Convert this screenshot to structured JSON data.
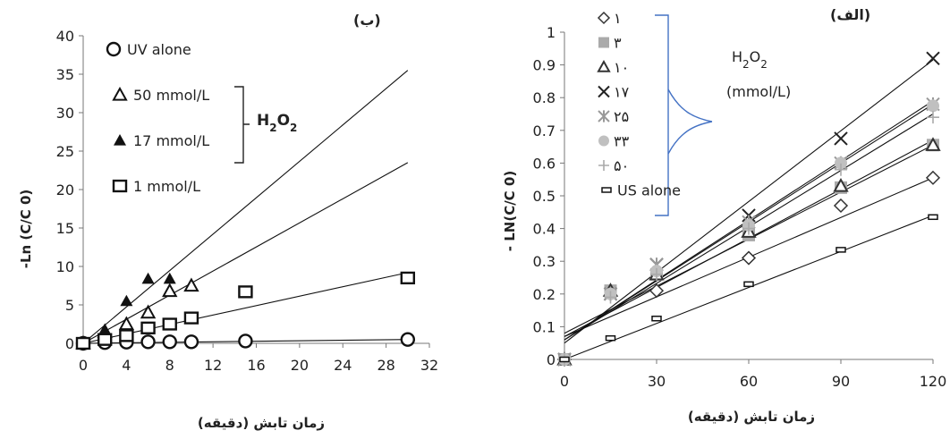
{
  "chart_data": [
    {
      "type": "scatter",
      "panel_label": "(ب)",
      "xlabel": "زمان تابش (دقیقه)",
      "ylabel": "-Ln (C/C 0)",
      "xlim": [
        0,
        32
      ],
      "ylim": [
        0,
        40
      ],
      "xticks": [
        "0",
        "4",
        "8",
        "12",
        "16",
        "20",
        "24",
        "28",
        "32"
      ],
      "yticks": [
        "0",
        "5",
        "10",
        "15",
        "20",
        "25",
        "30",
        "35",
        "40"
      ],
      "legend_group_label": "H2O2",
      "series": [
        {
          "name": "UV alone",
          "marker": "circle",
          "x": [
            0,
            2,
            4,
            6,
            8,
            10,
            15,
            30
          ],
          "y": [
            0,
            0.1,
            0.15,
            0.2,
            0.2,
            0.2,
            0.3,
            0.5
          ],
          "trend": [
            [
              0,
              0
            ],
            [
              30,
              0.5
            ]
          ]
        },
        {
          "name": "50 mmol/L",
          "marker": "triangle-open",
          "x": [
            0,
            2,
            4,
            6,
            8,
            10
          ],
          "y": [
            0,
            1.5,
            2.5,
            4,
            6.8,
            7.5
          ],
          "trend": [
            [
              0,
              0
            ],
            [
              30,
              23.5
            ]
          ]
        },
        {
          "name": "17 mmol/L",
          "marker": "triangle-filled",
          "x": [
            0,
            2,
            4,
            6,
            8
          ],
          "y": [
            0,
            1.8,
            5.5,
            8.4,
            8.4
          ],
          "trend": [
            [
              0,
              0
            ],
            [
              30,
              35.5
            ]
          ]
        },
        {
          "name": "1 mmol/L",
          "marker": "square-open",
          "x": [
            0,
            2,
            4,
            6,
            8,
            10,
            15,
            30
          ],
          "y": [
            0,
            0.5,
            1,
            2,
            2.5,
            3.3,
            6.7,
            8.5
          ],
          "trend": [
            [
              0,
              0
            ],
            [
              30,
              9.2
            ]
          ]
        }
      ]
    },
    {
      "type": "scatter",
      "panel_label": "(الف)",
      "xlabel": "زمان تابش (دقیقه)",
      "ylabel": "- LN(C/C 0)",
      "xlim": [
        0,
        120
      ],
      "ylim": [
        0,
        1
      ],
      "xticks": [
        "0",
        "30",
        "60",
        "90",
        "120"
      ],
      "yticks": [
        "0",
        "0.1",
        "0.2",
        "0.3",
        "0.4",
        "0.5",
        "0.6",
        "0.7",
        "0.8",
        "0.9",
        "1"
      ],
      "legend_group_label": "H2O2",
      "legend_group_unit": "(mmol/L)",
      "series": [
        {
          "name": "۱",
          "marker": "diamond-open",
          "color": "#333333",
          "x": [
            0,
            30,
            60,
            90,
            120
          ],
          "y": [
            0,
            0.21,
            0.31,
            0.47,
            0.555
          ],
          "trend": [
            [
              0,
              0.07
            ],
            [
              120,
              0.555
            ]
          ]
        },
        {
          "name": "۳",
          "marker": "square-filled",
          "color": "#aaaaaa",
          "x": [
            0,
            15,
            30,
            60,
            90,
            120
          ],
          "y": [
            0,
            0.21,
            0.26,
            0.38,
            0.525,
            0.655
          ],
          "trend": [
            [
              0,
              0.08
            ],
            [
              120,
              0.655
            ]
          ]
        },
        {
          "name": "۱۰",
          "marker": "triangle-open",
          "color": "#333333",
          "x": [
            0,
            15,
            30,
            60,
            90,
            120
          ],
          "y": [
            0,
            0.21,
            0.26,
            0.39,
            0.53,
            0.655
          ],
          "trend": [
            [
              0,
              0.07
            ],
            [
              120,
              0.67
            ]
          ]
        },
        {
          "name": "۱۷",
          "marker": "x",
          "color": "#222222",
          "x": [
            0,
            15,
            30,
            60,
            90,
            120
          ],
          "y": [
            0,
            0.2,
            0.29,
            0.44,
            0.675,
            0.92
          ],
          "trend": [
            [
              0,
              0.05
            ],
            [
              120,
              0.915
            ]
          ]
        },
        {
          "name": "۲۵",
          "marker": "asterisk",
          "color": "#999999",
          "x": [
            0,
            15,
            30,
            60,
            90,
            120
          ],
          "y": [
            0,
            0.2,
            0.29,
            0.42,
            0.6,
            0.78
          ],
          "trend": [
            [
              0,
              0.06
            ],
            [
              120,
              0.79
            ]
          ]
        },
        {
          "name": "۳۳",
          "marker": "circle-filled",
          "color": "#c0c0c0",
          "x": [
            0,
            15,
            30,
            60,
            90,
            120
          ],
          "y": [
            0,
            0.2,
            0.27,
            0.41,
            0.6,
            0.775
          ],
          "trend": [
            [
              0,
              0.06
            ],
            [
              120,
              0.78
            ]
          ]
        },
        {
          "name": "۵۰",
          "marker": "plus",
          "color": "#aaaaaa",
          "x": [
            0,
            15,
            30,
            60,
            90,
            120
          ],
          "y": [
            0,
            0.19,
            0.26,
            0.4,
            0.58,
            0.74
          ],
          "trend": [
            [
              0,
              0.06
            ],
            [
              120,
              0.75
            ]
          ]
        },
        {
          "name": "US alone",
          "marker": "dash",
          "color": "#222222",
          "x": [
            0,
            15,
            30,
            60,
            90,
            120
          ],
          "y": [
            0,
            0.065,
            0.125,
            0.23,
            0.335,
            0.435
          ],
          "trend": [
            [
              0,
              0
            ],
            [
              120,
              0.44
            ]
          ]
        }
      ]
    }
  ]
}
